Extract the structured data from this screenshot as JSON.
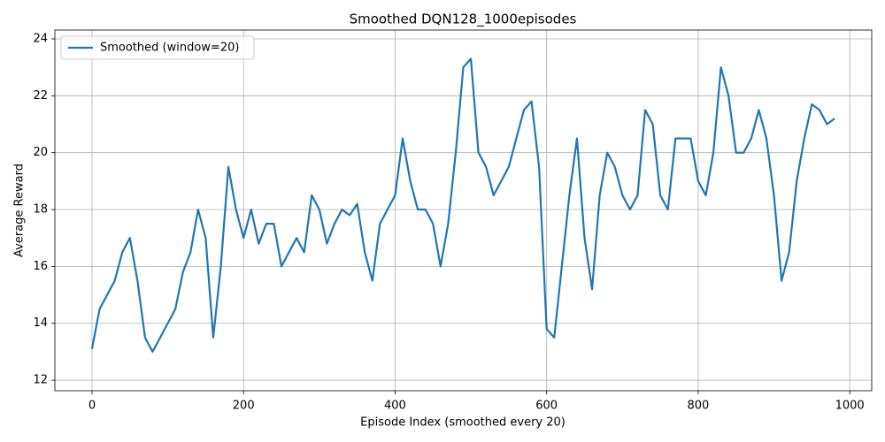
{
  "chart_data": {
    "type": "line",
    "title": "Smoothed DQN128_1000episodes",
    "xlabel": "Episode Index (smoothed every 20)",
    "ylabel": "Average Reward",
    "x": [
      0,
      10,
      20,
      30,
      40,
      50,
      60,
      70,
      80,
      90,
      100,
      110,
      120,
      130,
      140,
      150,
      160,
      170,
      180,
      190,
      200,
      210,
      220,
      230,
      240,
      250,
      260,
      270,
      280,
      290,
      300,
      310,
      320,
      330,
      340,
      350,
      360,
      370,
      380,
      390,
      400,
      410,
      420,
      430,
      440,
      450,
      460,
      470,
      480,
      490,
      500,
      510,
      520,
      530,
      540,
      550,
      560,
      570,
      580,
      590,
      600,
      610,
      620,
      630,
      640,
      650,
      660,
      670,
      680,
      690,
      700,
      710,
      720,
      730,
      740,
      750,
      760,
      770,
      780,
      790,
      800,
      810,
      820,
      830,
      840,
      850,
      860,
      870,
      880,
      890,
      900,
      910,
      920,
      930,
      940,
      950,
      960,
      970,
      980
    ],
    "series": [
      {
        "name": "Smoothed (window=20)",
        "color": "#1f77b4",
        "values": [
          13.1,
          14.5,
          15.0,
          15.5,
          16.5,
          17.0,
          15.5,
          13.5,
          13.0,
          13.5,
          14.0,
          14.5,
          15.8,
          16.5,
          18.0,
          17.0,
          13.5,
          16.0,
          19.5,
          18.0,
          17.0,
          18.0,
          16.8,
          17.5,
          17.5,
          16.0,
          16.5,
          17.0,
          16.5,
          18.5,
          18.0,
          16.8,
          17.5,
          18.0,
          17.8,
          18.2,
          16.5,
          15.5,
          17.5,
          18.0,
          18.5,
          20.5,
          19.0,
          18.0,
          18.0,
          17.5,
          16.0,
          17.5,
          20.0,
          23.0,
          23.3,
          20.0,
          19.5,
          18.5,
          19.0,
          19.5,
          20.5,
          21.5,
          21.8,
          19.5,
          13.8,
          13.5,
          16.0,
          18.5,
          20.5,
          17.0,
          15.2,
          18.5,
          20.0,
          19.5,
          18.5,
          18.0,
          18.5,
          21.5,
          21.0,
          18.5,
          18.0,
          20.5,
          20.5,
          20.5,
          19.0,
          18.5,
          20.0,
          23.0,
          22.0,
          20.0,
          20.0,
          20.5,
          21.5,
          20.5,
          18.5,
          15.5,
          16.5,
          19.0,
          20.5,
          21.7,
          21.5,
          21.0,
          21.2
        ]
      }
    ],
    "xlim": [
      -49,
      1029
    ],
    "ylim": [
      11.63,
      24.31
    ],
    "xticks": [
      0,
      200,
      400,
      600,
      800,
      1000
    ],
    "yticks": [
      12,
      14,
      16,
      18,
      20,
      22,
      24
    ],
    "grid": true,
    "legend": "upper-left"
  }
}
